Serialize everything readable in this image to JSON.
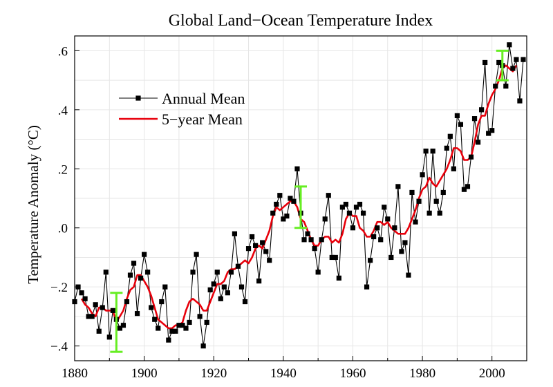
{
  "chart_data": {
    "type": "line",
    "title": "Global Land−Ocean Temperature Index",
    "xlabel": "",
    "ylabel": "Temperature Anomaly (°C)",
    "xlim": [
      1880,
      2010
    ],
    "ylim": [
      -0.45,
      0.65
    ],
    "xticks": [
      1880,
      1900,
      1920,
      1940,
      1960,
      1980,
      2000
    ],
    "xtick_labels": [
      "1880",
      "1900",
      "1920",
      "1940",
      "1960",
      "1980",
      "2000"
    ],
    "yticks": [
      -0.4,
      -0.2,
      0.0,
      0.2,
      0.4,
      0.6
    ],
    "ytick_labels": [
      "−.4",
      "−.2",
      ".0",
      ".2",
      ".4",
      ".6"
    ],
    "grid": true,
    "legend_position": "upper-left",
    "series": [
      {
        "name": "Annual Mean",
        "color": "#000000",
        "marker": "square",
        "x": [
          1880,
          1881,
          1882,
          1883,
          1884,
          1885,
          1886,
          1887,
          1888,
          1889,
          1890,
          1891,
          1892,
          1893,
          1894,
          1895,
          1896,
          1897,
          1898,
          1899,
          1900,
          1901,
          1902,
          1903,
          1904,
          1905,
          1906,
          1907,
          1908,
          1909,
          1910,
          1911,
          1912,
          1913,
          1914,
          1915,
          1916,
          1917,
          1918,
          1919,
          1920,
          1921,
          1922,
          1923,
          1924,
          1925,
          1926,
          1927,
          1928,
          1929,
          1930,
          1931,
          1932,
          1933,
          1934,
          1935,
          1936,
          1937,
          1938,
          1939,
          1940,
          1941,
          1942,
          1943,
          1944,
          1945,
          1946,
          1947,
          1948,
          1949,
          1950,
          1951,
          1952,
          1953,
          1954,
          1955,
          1956,
          1957,
          1958,
          1959,
          1960,
          1961,
          1962,
          1963,
          1964,
          1965,
          1966,
          1967,
          1968,
          1969,
          1970,
          1971,
          1972,
          1973,
          1974,
          1975,
          1976,
          1977,
          1978,
          1979,
          1980,
          1981,
          1982,
          1983,
          1984,
          1985,
          1986,
          1987,
          1988,
          1989,
          1990,
          1991,
          1992,
          1993,
          1994,
          1995,
          1996,
          1997,
          1998,
          1999,
          2000,
          2001,
          2002,
          2003,
          2004,
          2005,
          2006,
          2007,
          2008,
          2009
        ],
        "values": [
          -0.25,
          -0.2,
          -0.22,
          -0.24,
          -0.3,
          -0.3,
          -0.26,
          -0.35,
          -0.27,
          -0.15,
          -0.37,
          -0.28,
          -0.31,
          -0.34,
          -0.33,
          -0.25,
          -0.16,
          -0.12,
          -0.29,
          -0.17,
          -0.09,
          -0.15,
          -0.27,
          -0.31,
          -0.34,
          -0.25,
          -0.2,
          -0.38,
          -0.35,
          -0.35,
          -0.33,
          -0.33,
          -0.34,
          -0.32,
          -0.15,
          -0.09,
          -0.3,
          -0.4,
          -0.32,
          -0.21,
          -0.19,
          -0.15,
          -0.24,
          -0.2,
          -0.22,
          -0.15,
          -0.02,
          -0.13,
          -0.2,
          -0.25,
          -0.07,
          -0.03,
          -0.06,
          -0.18,
          -0.05,
          -0.08,
          -0.11,
          0.05,
          0.08,
          0.11,
          0.03,
          0.04,
          0.1,
          0.09,
          0.2,
          0.05,
          -0.04,
          -0.02,
          -0.04,
          -0.07,
          -0.15,
          -0.04,
          0.03,
          0.11,
          -0.1,
          -0.1,
          -0.17,
          0.07,
          0.08,
          0.05,
          0.0,
          0.07,
          0.08,
          0.05,
          -0.2,
          -0.11,
          -0.03,
          0.0,
          -0.04,
          0.07,
          0.03,
          -0.1,
          0.0,
          0.14,
          -0.08,
          -0.05,
          -0.16,
          0.12,
          0.02,
          0.09,
          0.18,
          0.26,
          0.05,
          0.26,
          0.09,
          0.05,
          0.12,
          0.27,
          0.31,
          0.2,
          0.38,
          0.35,
          0.13,
          0.14,
          0.24,
          0.37,
          0.29,
          0.4,
          0.56,
          0.32,
          0.33,
          0.48,
          0.56,
          0.55,
          0.48,
          0.62,
          0.54,
          0.57,
          0.43,
          0.57
        ]
      },
      {
        "name": "5−year Mean",
        "color": "#e8000b",
        "x": [
          1882,
          1883,
          1884,
          1885,
          1886,
          1887,
          1888,
          1889,
          1890,
          1891,
          1892,
          1893,
          1894,
          1895,
          1896,
          1897,
          1898,
          1899,
          1900,
          1901,
          1902,
          1903,
          1904,
          1905,
          1906,
          1907,
          1908,
          1909,
          1910,
          1911,
          1912,
          1913,
          1914,
          1915,
          1916,
          1917,
          1918,
          1919,
          1920,
          1921,
          1922,
          1923,
          1924,
          1925,
          1926,
          1927,
          1928,
          1929,
          1930,
          1931,
          1932,
          1933,
          1934,
          1935,
          1936,
          1937,
          1938,
          1939,
          1940,
          1941,
          1942,
          1943,
          1944,
          1945,
          1946,
          1947,
          1948,
          1949,
          1950,
          1951,
          1952,
          1953,
          1954,
          1955,
          1956,
          1957,
          1958,
          1959,
          1960,
          1961,
          1962,
          1963,
          1964,
          1965,
          1966,
          1967,
          1968,
          1969,
          1970,
          1971,
          1972,
          1973,
          1974,
          1975,
          1976,
          1977,
          1978,
          1979,
          1980,
          1981,
          1982,
          1983,
          1984,
          1985,
          1986,
          1987,
          1988,
          1989,
          1990,
          1991,
          1992,
          1993,
          1994,
          1995,
          1996,
          1997,
          1998,
          1999,
          2000,
          2001,
          2002,
          2003,
          2004,
          2005,
          2006,
          2007
        ],
        "values": [
          -0.24,
          -0.26,
          -0.27,
          -0.29,
          -0.3,
          -0.27,
          -0.27,
          -0.28,
          -0.28,
          -0.28,
          -0.32,
          -0.3,
          -0.28,
          -0.24,
          -0.21,
          -0.2,
          -0.16,
          -0.16,
          -0.18,
          -0.2,
          -0.23,
          -0.27,
          -0.31,
          -0.32,
          -0.33,
          -0.34,
          -0.34,
          -0.33,
          -0.33,
          -0.32,
          -0.28,
          -0.25,
          -0.24,
          -0.25,
          -0.26,
          -0.28,
          -0.28,
          -0.25,
          -0.22,
          -0.19,
          -0.19,
          -0.18,
          -0.15,
          -0.14,
          -0.14,
          -0.13,
          -0.12,
          -0.11,
          -0.12,
          -0.1,
          -0.07,
          -0.06,
          -0.07,
          -0.04,
          -0.01,
          0.04,
          0.07,
          0.06,
          0.07,
          0.08,
          0.09,
          0.09,
          0.07,
          0.03,
          0.02,
          -0.01,
          -0.04,
          -0.06,
          -0.06,
          -0.04,
          -0.03,
          -0.03,
          -0.05,
          -0.04,
          -0.05,
          -0.02,
          0.03,
          0.05,
          0.04,
          0.04,
          0.0,
          -0.01,
          -0.03,
          -0.03,
          -0.01,
          0.02,
          0.02,
          0.01,
          0.02,
          0.0,
          -0.01,
          -0.02,
          -0.02,
          -0.02,
          0.0,
          0.03,
          0.06,
          0.1,
          0.13,
          0.14,
          0.17,
          0.15,
          0.14,
          0.16,
          0.18,
          0.2,
          0.23,
          0.27,
          0.27,
          0.26,
          0.23,
          0.23,
          0.24,
          0.29,
          0.35,
          0.38,
          0.38,
          0.42,
          0.45,
          0.47,
          0.5,
          0.54,
          0.55,
          0.54,
          0.53,
          0.55
        ]
      }
    ],
    "error_bars": [
      {
        "x": 1892,
        "low": -0.42,
        "high": -0.22,
        "color": "#66ee22"
      },
      {
        "x": 1945,
        "low": 0.0,
        "high": 0.14,
        "color": "#66ee22"
      },
      {
        "x": 2003,
        "low": 0.5,
        "high": 0.6,
        "color": "#66ee22"
      }
    ]
  }
}
